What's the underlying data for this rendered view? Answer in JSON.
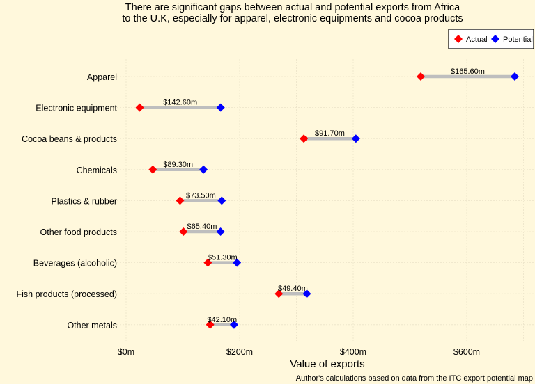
{
  "chart_data": {
    "type": "dumbbell",
    "title": "There are significant gaps between actual and potential exports from Africa\nto the U.K, especially for apparel, electronic equipments and cocoa products",
    "xlabel": "Value of exports",
    "ylabel": "",
    "caption": "Author's calculations based on data from the ITC export potential map",
    "xlim": [
      -5,
      715
    ],
    "x_ticks": [
      0,
      200,
      400,
      600
    ],
    "x_tick_labels": [
      "$0m",
      "$200m",
      "$400m",
      "$600m"
    ],
    "grid": true,
    "legend": {
      "position": "top-right",
      "entries": [
        "Actual",
        "Potential"
      ]
    },
    "colors": {
      "Actual": "#ff0000",
      "Potential": "#0000ff",
      "segment": "#bebebe",
      "background": "#fff8dc"
    },
    "categories": [
      "Apparel",
      "Electronic equipment",
      "Cocoa beans & products",
      "Chemicals",
      "Plastics & rubber",
      "Other food products",
      "Beverages (alcoholic)",
      "Fish products (processed)",
      "Other metals"
    ],
    "series": [
      {
        "name": "Actual",
        "values": [
          519,
          24,
          313,
          47,
          95,
          101,
          144,
          269,
          148
        ]
      },
      {
        "name": "Potential",
        "values": [
          684.6,
          166.6,
          404.7,
          136.3,
          168.5,
          166.4,
          195.3,
          318.4,
          190.1
        ]
      }
    ],
    "gap_labels": [
      "$165.60m",
      "$142.60m",
      "$91.70m",
      "$89.30m",
      "$73.50m",
      "$65.40m",
      "$51.30m",
      "$49.40m",
      "$42.10m"
    ]
  }
}
